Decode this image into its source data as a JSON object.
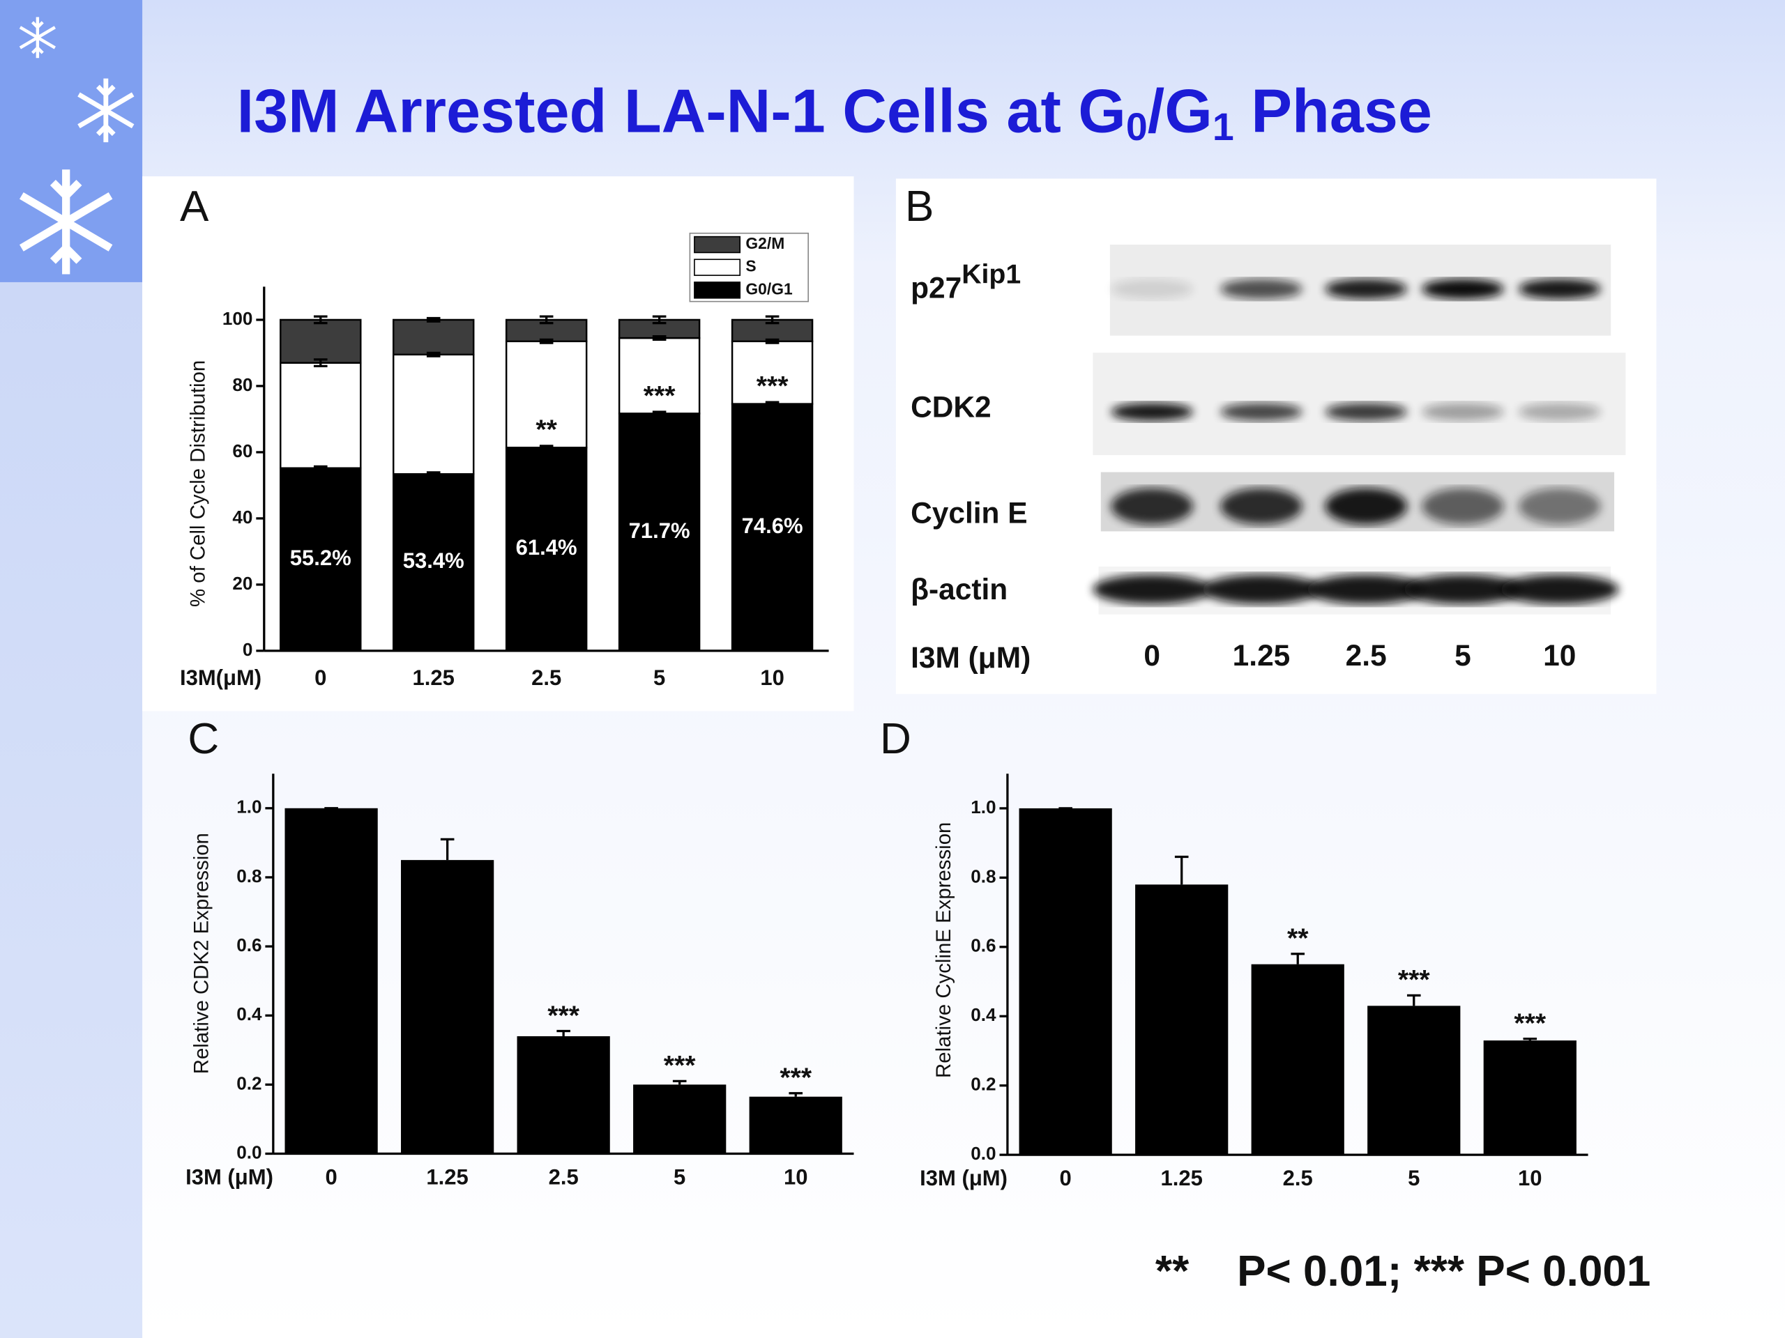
{
  "slide": {
    "title": {
      "main": "I3M Arrested LA-N-1 Cells at G",
      "sub1": "0",
      "mid": "/G",
      "sub2": "1",
      "end": " Phase"
    },
    "footnote": "**    P< 0.01; *** P< 0.001"
  },
  "panel_b": {
    "label": "B",
    "rows": [
      {
        "label": "p27",
        "sup": "Kip1"
      },
      {
        "label": "CDK2"
      },
      {
        "label": "Cyclin E"
      },
      {
        "label": "β-actin"
      }
    ],
    "xlabel": "I3M (μM)",
    "lanes": [
      "0",
      "1.25",
      "2.5",
      "5",
      "10"
    ]
  },
  "chart_data": [
    {
      "type": "stacked_bar",
      "panel": "A",
      "ylabel": "% of Cell Cycle Distribution",
      "xlabel": "I3M(μM)",
      "categories": [
        "0",
        "1.25",
        "2.5",
        "5",
        "10"
      ],
      "ylim": [
        0,
        110
      ],
      "yticks": [
        0,
        20,
        40,
        60,
        80,
        100
      ],
      "series": [
        {
          "name": "G0/G1",
          "color": "#000000",
          "values": [
            55.2,
            53.4,
            61.4,
            71.7,
            74.6
          ],
          "value_labels": [
            "55.2%",
            "53.4%",
            "61.4%",
            "71.7%",
            "74.6%"
          ],
          "errors": [
            0.5,
            0.5,
            0.5,
            0.5,
            0.5
          ]
        },
        {
          "name": "S",
          "color": "#ffffff",
          "values": [
            31.8,
            36.1,
            32.1,
            22.8,
            18.9
          ],
          "errors": [
            1,
            0.5,
            0.5,
            0.5,
            0.5
          ]
        },
        {
          "name": "G2/M",
          "color": "#3d3d3d",
          "values": [
            13,
            10.5,
            6.5,
            5.5,
            6.5
          ],
          "errors": [
            1,
            0.5,
            1,
            1,
            1
          ]
        }
      ],
      "significance": [
        null,
        null,
        "**",
        "***",
        "***"
      ]
    },
    {
      "type": "bar",
      "panel": "C",
      "ylabel": "Relative CDK2 Expression",
      "xlabel": "I3M (μM)",
      "categories": [
        "0",
        "1.25",
        "2.5",
        "5",
        "10"
      ],
      "color": "#000000",
      "values": [
        1.0,
        0.85,
        0.34,
        0.2,
        0.165
      ],
      "errors": [
        0,
        0.06,
        0.015,
        0.01,
        0.01
      ],
      "ylim": [
        0,
        1.1
      ],
      "yticks": [
        {
          "value": 0,
          "label": "0.0"
        },
        0.2,
        0.4,
        0.6,
        0.8,
        {
          "value": 1,
          "label": "1.0"
        }
      ],
      "significance": [
        null,
        null,
        "***",
        "***",
        "***"
      ]
    },
    {
      "type": "bar",
      "panel": "D",
      "ylabel": "Relative CyclinE Expression",
      "xlabel": "I3M (μM)",
      "categories": [
        "0",
        "1.25",
        "2.5",
        "5",
        "10"
      ],
      "color": "#000000",
      "values": [
        1.0,
        0.78,
        0.55,
        0.43,
        0.33
      ],
      "errors": [
        0,
        0.08,
        0.03,
        0.03,
        0.005
      ],
      "ylim": [
        0,
        1.1
      ],
      "yticks": [
        {
          "value": 0,
          "label": "0.0"
        },
        0.2,
        0.4,
        0.6,
        0.8,
        {
          "value": 1,
          "label": "1.0"
        }
      ],
      "significance": [
        null,
        null,
        "**",
        "***",
        "***"
      ]
    }
  ]
}
